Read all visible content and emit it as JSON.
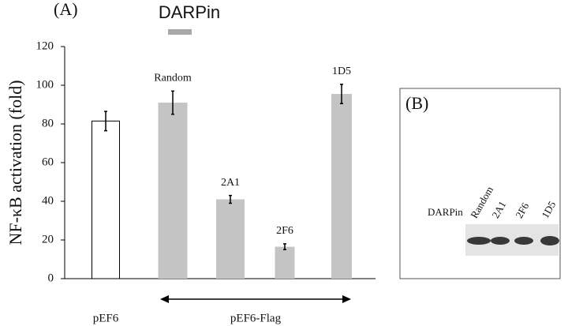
{
  "chart_data": {
    "type": "bar",
    "panel_label": "(A)",
    "ylabel": "NF-κB activation (fold)",
    "categories": [
      "pEF6",
      "Random",
      "2A1",
      "2F6",
      "1D5"
    ],
    "values": [
      81.5,
      91,
      41,
      16.5,
      95.5
    ],
    "errors": [
      5,
      6,
      2,
      1.5,
      5
    ],
    "colors": [
      "#ffffff",
      "#c4c4c4",
      "#c4c4c4",
      "#c4c4c4",
      "#c4c4c4"
    ],
    "ylim": [
      0,
      120
    ],
    "yticks": [
      0,
      20,
      40,
      60,
      80,
      100,
      120
    ],
    "legend": {
      "name": "DARPin",
      "color": "#a8a8a8"
    },
    "group_label": "pEF6-Flag"
  },
  "panel_b": {
    "label": "(B)",
    "row_label": "DARPin",
    "lanes": [
      "Random",
      "2A1",
      "2F6",
      "1D5"
    ]
  }
}
